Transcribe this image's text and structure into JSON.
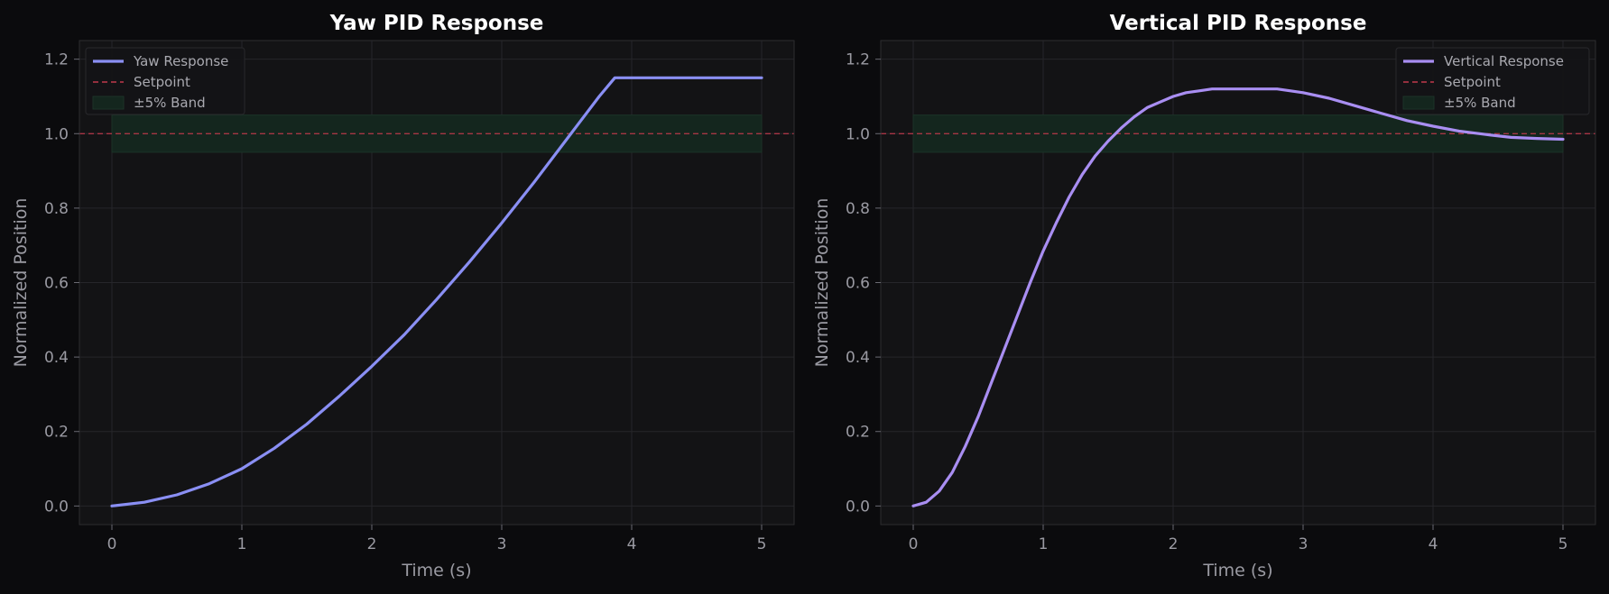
{
  "colors": {
    "figure_bg": "#0b0b0d",
    "axes_bg": "#131315",
    "grid": "#26262a",
    "spine": "#2c2c30",
    "setpoint": "#c0394b",
    "band": "#14261e",
    "yaw": "#8a8ff4",
    "vertical": "#a98ef2"
  },
  "chart_data": [
    {
      "type": "line",
      "title": "Yaw PID Response",
      "xlabel": "Time (s)",
      "ylabel": "Normalized Position",
      "xlim": [
        -0.25,
        5.25
      ],
      "ylim": [
        -0.05,
        1.25
      ],
      "xticks": [
        0,
        1,
        2,
        3,
        4,
        5
      ],
      "yticks": [
        0.0,
        0.2,
        0.4,
        0.6,
        0.8,
        1.0,
        1.2
      ],
      "xtick_labels": [
        "0",
        "1",
        "2",
        "3",
        "4",
        "5"
      ],
      "ytick_labels": [
        "0.0",
        "0.2",
        "0.4",
        "0.6",
        "0.8",
        "1.0",
        "1.2"
      ],
      "grid": true,
      "legend_position": "top-left",
      "series": [
        {
          "name": "Yaw Response",
          "color": "#8a8ff4",
          "x": [
            0,
            0.25,
            0.5,
            0.75,
            1.0,
            1.25,
            1.5,
            1.75,
            2.0,
            2.25,
            2.5,
            2.75,
            3.0,
            3.25,
            3.5,
            3.75,
            3.87,
            4.0,
            4.25,
            4.5,
            4.75,
            5.0
          ],
          "y": [
            0.0,
            0.01,
            0.03,
            0.06,
            0.1,
            0.155,
            0.22,
            0.295,
            0.375,
            0.46,
            0.555,
            0.655,
            0.76,
            0.87,
            0.985,
            1.1,
            1.15,
            1.15,
            1.15,
            1.15,
            1.15,
            1.15
          ]
        }
      ],
      "setpoint": {
        "name": "Setpoint",
        "value": 1.0
      },
      "band": {
        "name": "±5% Band",
        "x_range": [
          0,
          5
        ],
        "y_range": [
          0.95,
          1.05
        ]
      }
    },
    {
      "type": "line",
      "title": "Vertical PID Response",
      "xlabel": "Time (s)",
      "ylabel": "Normalized Position",
      "xlim": [
        -0.25,
        5.25
      ],
      "ylim": [
        -0.05,
        1.25
      ],
      "xticks": [
        0,
        1,
        2,
        3,
        4,
        5
      ],
      "yticks": [
        0.0,
        0.2,
        0.4,
        0.6,
        0.8,
        1.0,
        1.2
      ],
      "xtick_labels": [
        "0",
        "1",
        "2",
        "3",
        "4",
        "5"
      ],
      "ytick_labels": [
        "0.0",
        "0.2",
        "0.4",
        "0.6",
        "0.8",
        "1.0",
        "1.2"
      ],
      "grid": true,
      "legend_position": "top-right",
      "series": [
        {
          "name": "Vertical Response",
          "color": "#a98ef2",
          "x": [
            0,
            0.1,
            0.2,
            0.3,
            0.4,
            0.5,
            0.6,
            0.7,
            0.8,
            0.9,
            1.0,
            1.1,
            1.2,
            1.3,
            1.4,
            1.5,
            1.6,
            1.7,
            1.8,
            1.9,
            2.0,
            2.1,
            2.2,
            2.3,
            2.4,
            2.5,
            2.6,
            2.7,
            2.8,
            3.0,
            3.2,
            3.4,
            3.6,
            3.8,
            4.0,
            4.2,
            4.4,
            4.6,
            4.8,
            5.0
          ],
          "y": [
            0.0,
            0.01,
            0.04,
            0.09,
            0.16,
            0.24,
            0.33,
            0.42,
            0.51,
            0.6,
            0.685,
            0.76,
            0.83,
            0.89,
            0.94,
            0.98,
            1.015,
            1.045,
            1.07,
            1.085,
            1.1,
            1.11,
            1.115,
            1.12,
            1.12,
            1.12,
            1.12,
            1.12,
            1.12,
            1.11,
            1.095,
            1.075,
            1.055,
            1.035,
            1.02,
            1.007,
            0.998,
            0.99,
            0.987,
            0.985
          ]
        }
      ],
      "setpoint": {
        "name": "Setpoint",
        "value": 1.0
      },
      "band": {
        "name": "±5% Band",
        "x_range": [
          0,
          5
        ],
        "y_range": [
          0.95,
          1.05
        ]
      }
    }
  ]
}
